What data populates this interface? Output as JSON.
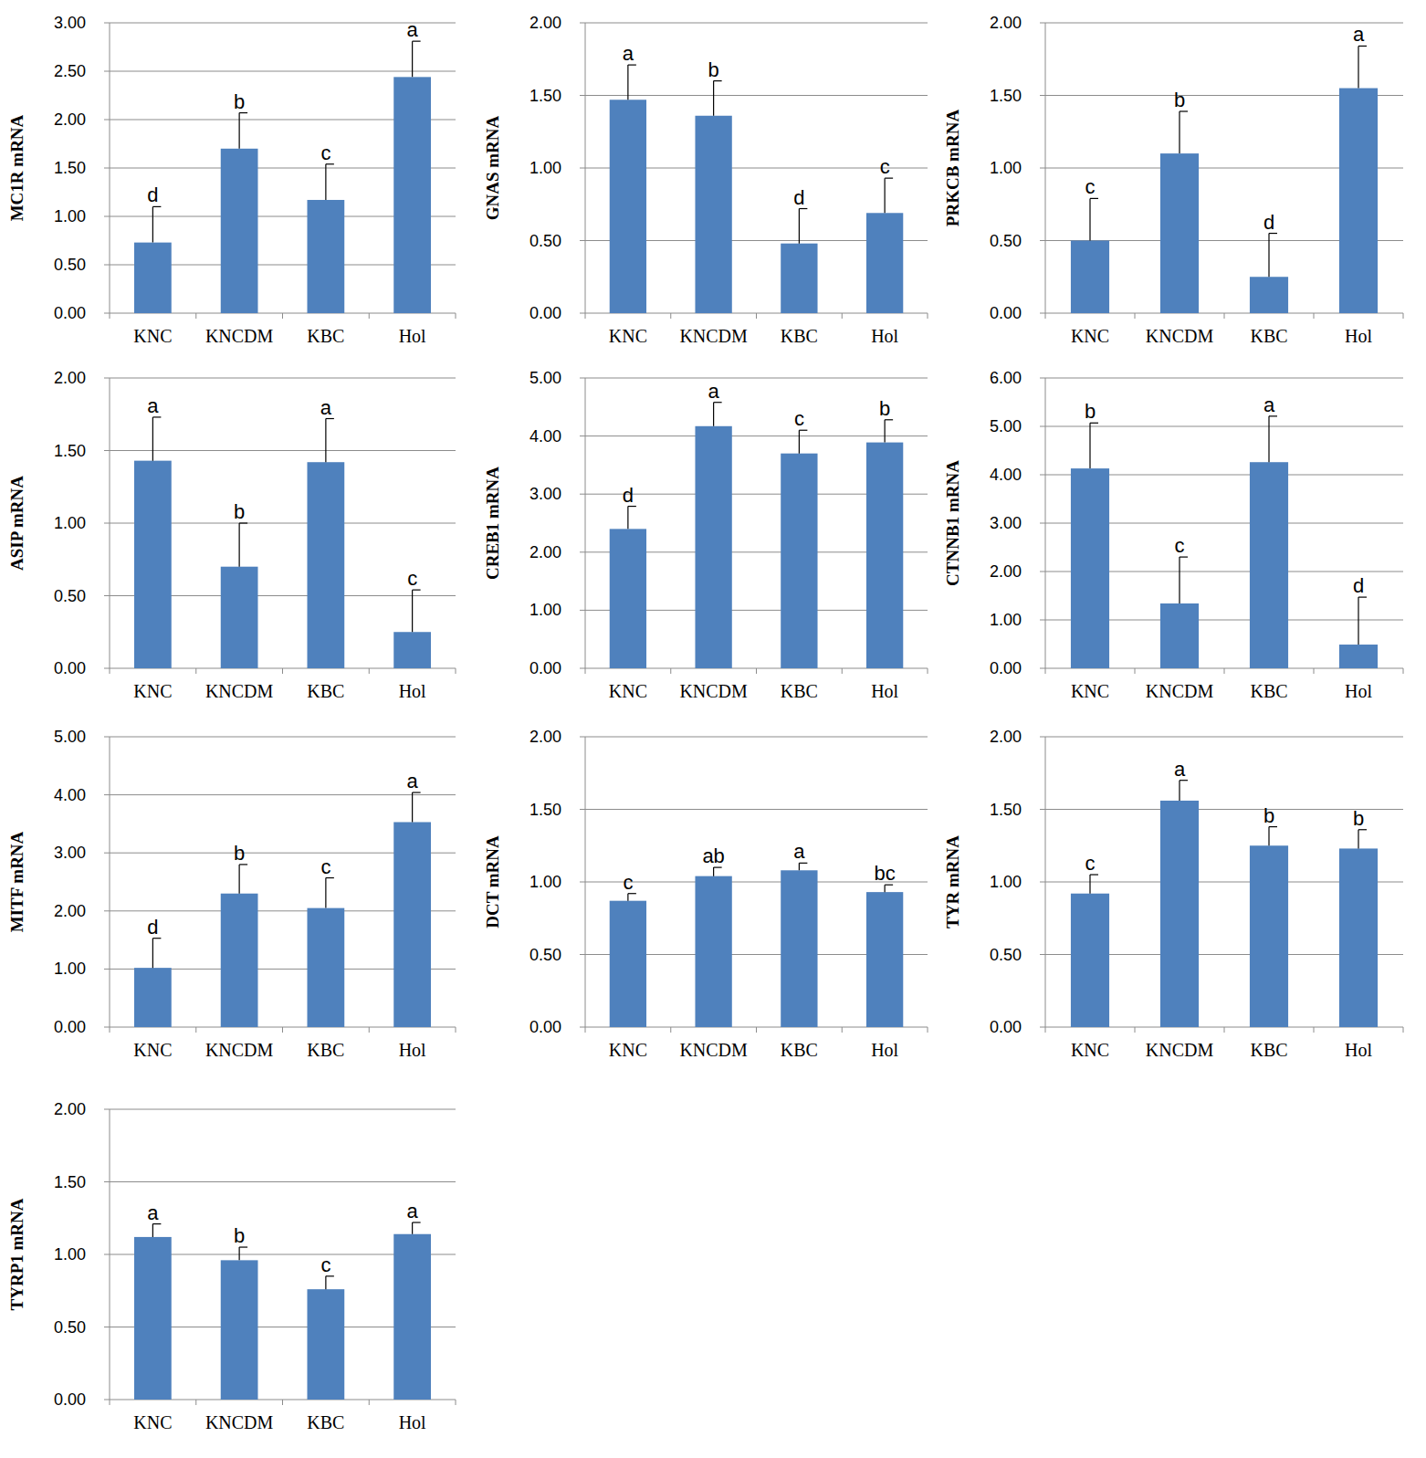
{
  "chart_data": [
    {
      "type": "bar",
      "y_label": "MC1R mRNA",
      "categories": [
        "KNC",
        "KNCDM",
        "KBC",
        "Hol"
      ],
      "values": [
        0.73,
        1.7,
        1.17,
        2.44
      ],
      "errors": [
        0.37,
        0.37,
        0.37,
        0.37
      ],
      "annotations": [
        "d",
        "b",
        "c",
        "a"
      ],
      "color": "#4f81bd",
      "ylim": [
        0,
        3
      ],
      "yticks": [
        {
          "value": 0,
          "label": "0.00"
        },
        {
          "value": 0.5,
          "label": "0.50"
        },
        {
          "value": 1,
          "label": "1.00"
        },
        {
          "value": 1.5,
          "label": "1.50"
        },
        {
          "value": 2,
          "label": "2.00"
        },
        {
          "value": 2.5,
          "label": "2.50"
        },
        {
          "value": 3,
          "label": "3.00"
        }
      ],
      "grid": true
    },
    {
      "type": "bar",
      "y_label": "GNAS mRNA",
      "categories": [
        "KNC",
        "KNCDM",
        "KBC",
        "Hol"
      ],
      "values": [
        1.47,
        1.36,
        0.48,
        0.69
      ],
      "errors": [
        0.24,
        0.24,
        0.24,
        0.24
      ],
      "annotations": [
        "a",
        "b",
        "d",
        "c"
      ],
      "color": "#4f81bd",
      "ylim": [
        0,
        2
      ],
      "yticks": [
        {
          "value": 0,
          "label": "0.00"
        },
        {
          "value": 0.5,
          "label": "0.50"
        },
        {
          "value": 1,
          "label": "1.00"
        },
        {
          "value": 1.5,
          "label": "1.50"
        },
        {
          "value": 2,
          "label": "2.00"
        }
      ],
      "grid": true
    },
    {
      "type": "bar",
      "y_label": "PRKCB mRNA",
      "categories": [
        "KNC",
        "KNCDM",
        "KBC",
        "Hol"
      ],
      "values": [
        0.5,
        1.1,
        0.25,
        1.55
      ],
      "errors": [
        0.29,
        0.29,
        0.3,
        0.29
      ],
      "annotations": [
        "c",
        "b",
        "d",
        "a"
      ],
      "color": "#4f81bd",
      "ylim": [
        0,
        2
      ],
      "yticks": [
        {
          "value": 0,
          "label": "0.00"
        },
        {
          "value": 0.5,
          "label": "0.50"
        },
        {
          "value": 1,
          "label": "1.00"
        },
        {
          "value": 1.5,
          "label": "1.50"
        },
        {
          "value": 2,
          "label": "2.00"
        }
      ],
      "grid": true
    },
    {
      "type": "bar",
      "y_label": "ASIP mRNA",
      "categories": [
        "KNC",
        "KNCDM",
        "KBC",
        "Hol"
      ],
      "values": [
        1.43,
        0.7,
        1.42,
        0.25
      ],
      "errors": [
        0.3,
        0.3,
        0.3,
        0.29
      ],
      "annotations": [
        "a",
        "b",
        "a",
        "c"
      ],
      "color": "#4f81bd",
      "ylim": [
        0,
        2
      ],
      "yticks": [
        {
          "value": 0,
          "label": "0.00"
        },
        {
          "value": 0.5,
          "label": "0.50"
        },
        {
          "value": 1,
          "label": "1.00"
        },
        {
          "value": 1.5,
          "label": "1.50"
        },
        {
          "value": 2,
          "label": "2.00"
        }
      ],
      "grid": true
    },
    {
      "type": "bar",
      "y_label": "CREB1 mRNA",
      "categories": [
        "KNC",
        "KNCDM",
        "KBC",
        "Hol"
      ],
      "values": [
        2.4,
        4.17,
        3.7,
        3.89
      ],
      "errors": [
        0.39,
        0.41,
        0.4,
        0.39
      ],
      "annotations": [
        "d",
        "a",
        "c",
        "b"
      ],
      "color": "#4f81bd",
      "ylim": [
        0,
        5
      ],
      "yticks": [
        {
          "value": 0,
          "label": "0.00"
        },
        {
          "value": 1,
          "label": "1.00"
        },
        {
          "value": 2,
          "label": "2.00"
        },
        {
          "value": 3,
          "label": "3.00"
        },
        {
          "value": 4,
          "label": "4.00"
        },
        {
          "value": 5,
          "label": "5.00"
        }
      ],
      "grid": true
    },
    {
      "type": "bar",
      "y_label": "CTNNB1 mRNA",
      "categories": [
        "KNC",
        "KNCDM",
        "KBC",
        "Hol"
      ],
      "values": [
        4.13,
        1.34,
        4.26,
        0.49
      ],
      "errors": [
        0.94,
        0.96,
        0.95,
        0.98
      ],
      "annotations": [
        "b",
        "c",
        "a",
        "d"
      ],
      "color": "#4f81bd",
      "ylim": [
        0,
        6
      ],
      "yticks": [
        {
          "value": 0,
          "label": "0.00"
        },
        {
          "value": 1,
          "label": "1.00"
        },
        {
          "value": 2,
          "label": "2.00"
        },
        {
          "value": 3,
          "label": "3.00"
        },
        {
          "value": 4,
          "label": "4.00"
        },
        {
          "value": 5,
          "label": "5.00"
        },
        {
          "value": 6,
          "label": "6.00"
        }
      ],
      "grid": true
    },
    {
      "type": "bar",
      "y_label": "MITF mRNA",
      "categories": [
        "KNC",
        "KNCDM",
        "KBC",
        "Hol"
      ],
      "values": [
        1.02,
        2.3,
        2.05,
        3.53
      ],
      "errors": [
        0.51,
        0.5,
        0.52,
        0.51
      ],
      "annotations": [
        "d",
        "b",
        "c",
        "a"
      ],
      "color": "#4f81bd",
      "ylim": [
        0,
        5
      ],
      "yticks": [
        {
          "value": 0,
          "label": "0.00"
        },
        {
          "value": 1,
          "label": "1.00"
        },
        {
          "value": 2,
          "label": "2.00"
        },
        {
          "value": 3,
          "label": "3.00"
        },
        {
          "value": 4,
          "label": "4.00"
        },
        {
          "value": 5,
          "label": "5.00"
        }
      ],
      "grid": true
    },
    {
      "type": "bar",
      "y_label": "DCT mRNA",
      "categories": [
        "KNC",
        "KNCDM",
        "KBC",
        "Hol"
      ],
      "values": [
        0.87,
        1.04,
        1.08,
        0.93
      ],
      "errors": [
        0.05,
        0.06,
        0.05,
        0.05
      ],
      "annotations": [
        "c",
        "ab",
        "a",
        "bc"
      ],
      "color": "#4f81bd",
      "ylim": [
        0,
        2
      ],
      "yticks": [
        {
          "value": 0,
          "label": "0.00"
        },
        {
          "value": 0.5,
          "label": "0.50"
        },
        {
          "value": 1,
          "label": "1.00"
        },
        {
          "value": 1.5,
          "label": "1.50"
        },
        {
          "value": 2,
          "label": "2.00"
        }
      ],
      "grid": true
    },
    {
      "type": "bar",
      "y_label": "TYR mRNA",
      "categories": [
        "KNC",
        "KNCDM",
        "KBC",
        "Hol"
      ],
      "values": [
        0.92,
        1.56,
        1.25,
        1.23
      ],
      "errors": [
        0.13,
        0.14,
        0.13,
        0.13
      ],
      "annotations": [
        "c",
        "a",
        "b",
        "b"
      ],
      "color": "#4f81bd",
      "ylim": [
        0,
        2
      ],
      "yticks": [
        {
          "value": 0,
          "label": "0.00"
        },
        {
          "value": 0.5,
          "label": "0.50"
        },
        {
          "value": 1,
          "label": "1.00"
        },
        {
          "value": 1.5,
          "label": "1.50"
        },
        {
          "value": 2,
          "label": "2.00"
        }
      ],
      "grid": true
    },
    {
      "type": "bar",
      "y_label": "TYRP1 mRNA",
      "categories": [
        "KNC",
        "KNCDM",
        "KBC",
        "Hol"
      ],
      "values": [
        1.12,
        0.96,
        0.76,
        1.14
      ],
      "errors": [
        0.09,
        0.09,
        0.09,
        0.08
      ],
      "annotations": [
        "a",
        "b",
        "c",
        "a"
      ],
      "color": "#4f81bd",
      "ylim": [
        0,
        2
      ],
      "yticks": [
        {
          "value": 0,
          "label": "0.00"
        },
        {
          "value": 0.5,
          "label": "0.50"
        },
        {
          "value": 1,
          "label": "1.00"
        },
        {
          "value": 1.5,
          "label": "1.50"
        },
        {
          "value": 2,
          "label": "2.00"
        }
      ],
      "grid": true
    }
  ]
}
